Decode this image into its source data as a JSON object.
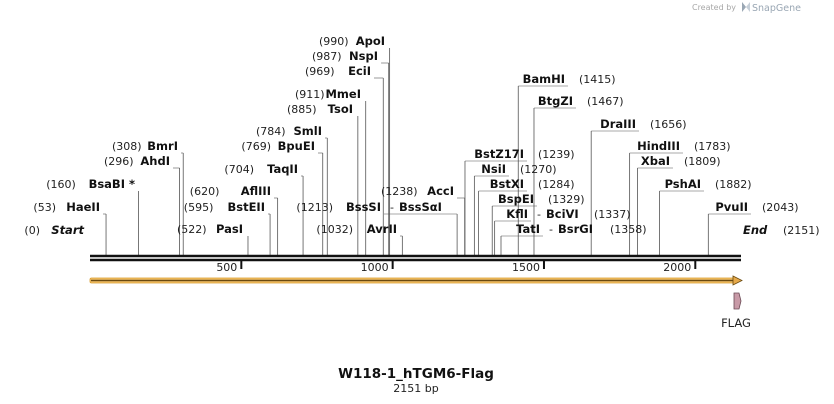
{
  "credit": {
    "prefix": "Created by",
    "brand": "SnapGene"
  },
  "sequence": {
    "name": "W118-1_hTGM6-Flag",
    "length_label": "2151 bp",
    "length_bp": 2151
  },
  "ticks": [
    {
      "value": 500,
      "label": "500"
    },
    {
      "value": 1000,
      "label": "1000"
    },
    {
      "value": 1500,
      "label": "1500"
    },
    {
      "value": 2000,
      "label": "2000"
    }
  ],
  "sites": [
    {
      "pos_label": "(0)",
      "name": "Start",
      "site": 0,
      "style": "end"
    },
    {
      "pos_label": "(53)",
      "name": "HaeII",
      "site": 53
    },
    {
      "pos_label": "(160)",
      "name": "BsaBI *",
      "site": 160
    },
    {
      "pos_label": "(296)",
      "name": "AhdI",
      "site": 296
    },
    {
      "pos_label": "(308)",
      "name": "BmrI",
      "site": 308
    },
    {
      "pos_label": "(522)",
      "name": "PasI",
      "site": 522
    },
    {
      "pos_label": "(595)",
      "name": "BstEII",
      "site": 595
    },
    {
      "pos_label": "(620)",
      "name": "AflIII",
      "site": 620
    },
    {
      "pos_label": "(704)",
      "name": "TaqII",
      "site": 704
    },
    {
      "pos_label": "(769)",
      "name": "BpuEI",
      "site": 769
    },
    {
      "pos_label": "(784)",
      "name": "SmlI",
      "site": 784
    },
    {
      "pos_label": "(885)",
      "name": "TsoI",
      "site": 885
    },
    {
      "pos_label": "(911)",
      "name": "MmeI",
      "site": 911
    },
    {
      "pos_label": "(969)",
      "name": "EciI",
      "site": 969
    },
    {
      "pos_label": "(987)",
      "name": "NspI",
      "site": 987
    },
    {
      "pos_label": "(990)",
      "name": "ApoI",
      "site": 990
    },
    {
      "pos_label": "(1032)",
      "name": "AvrII",
      "site": 1032
    },
    {
      "pos_label": "(1213)",
      "name": "BssSI",
      "site": 1213,
      "pair_name": "BssSαI"
    },
    {
      "pos_label": "(1238)",
      "name": "AccI",
      "site": 1238
    },
    {
      "pos_label": "(1239)",
      "name": "BstZ17I",
      "site": 1239
    },
    {
      "pos_label": "(1270)",
      "name": "NsiI",
      "site": 1270
    },
    {
      "pos_label": "(1284)",
      "name": "BstXI",
      "site": 1284
    },
    {
      "pos_label": "(1329)",
      "name": "BspEI",
      "site": 1329
    },
    {
      "pos_label": "(1337)",
      "name": "KflI",
      "site": 1337,
      "pair_name": "BciVI"
    },
    {
      "pos_label": "(1358)",
      "name": "TatI",
      "site": 1358,
      "pair_name": "BsrGI"
    },
    {
      "pos_label": "(1415)",
      "name": "BamHI",
      "site": 1415
    },
    {
      "pos_label": "(1467)",
      "name": "BtgZI",
      "site": 1467
    },
    {
      "pos_label": "(1656)",
      "name": "DraIII",
      "site": 1656
    },
    {
      "pos_label": "(1783)",
      "name": "HindIII",
      "site": 1783
    },
    {
      "pos_label": "(1809)",
      "name": "XbaI",
      "site": 1809
    },
    {
      "pos_label": "(1882)",
      "name": "PshAI",
      "site": 1882
    },
    {
      "pos_label": "(2043)",
      "name": "PvuII",
      "site": 2043
    },
    {
      "pos_label": "(2151)",
      "name": "End",
      "site": 2151,
      "style": "end"
    }
  ],
  "features": [
    {
      "name": "hTGM6-Flag ORF",
      "label": "",
      "color": "#f5c36b",
      "direction": "forward"
    },
    {
      "name": "FLAG",
      "label": "FLAG",
      "color": "#c89aa7",
      "direction": "forward"
    }
  ],
  "colors": {
    "backbone": "#111111",
    "orf": "#f5c36b",
    "flag": "#c89aa7",
    "leader": "#555555"
  }
}
